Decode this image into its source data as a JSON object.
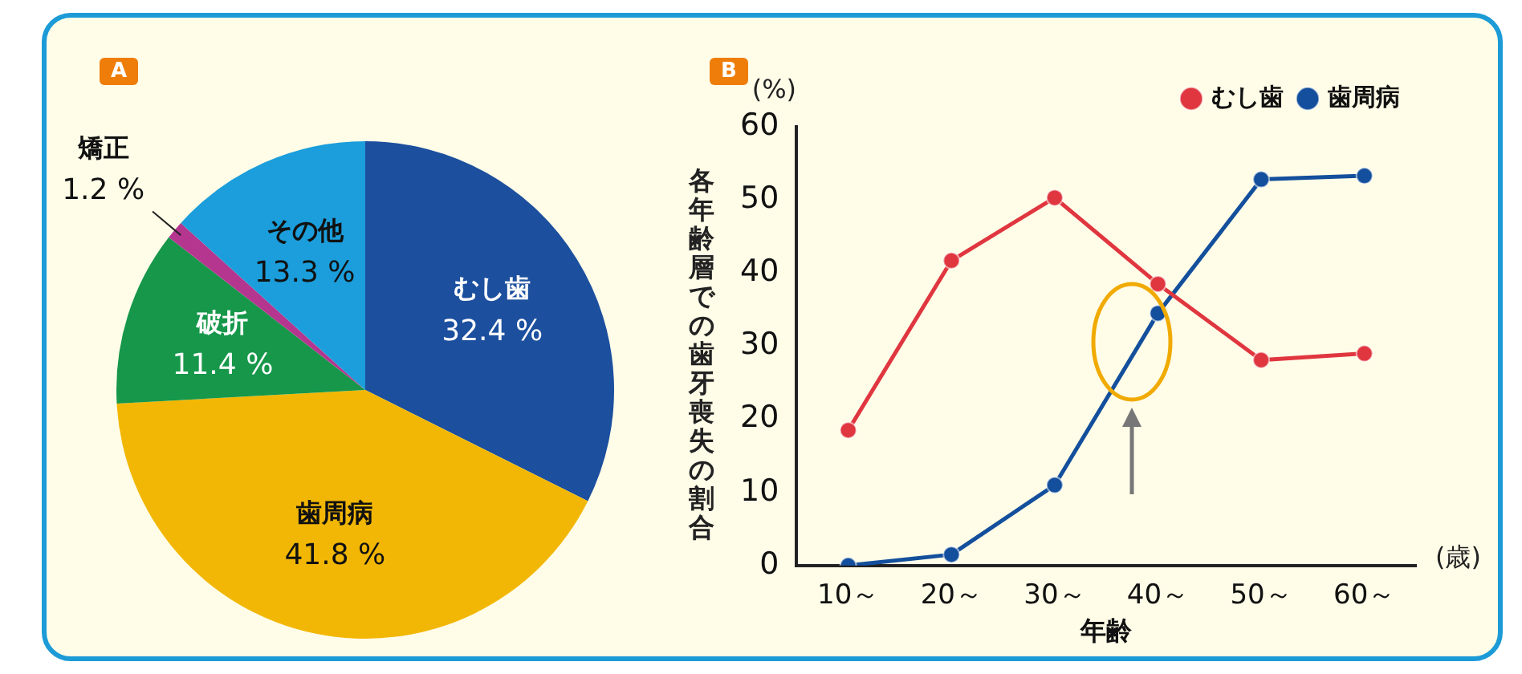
{
  "chart_data": [
    {
      "type": "pie",
      "title": "A",
      "categories": [
        "むし歯",
        "歯周病",
        "破折",
        "矯正",
        "その他"
      ],
      "values": [
        32.4,
        41.8,
        11.4,
        1.2,
        13.3
      ],
      "colors": [
        "#1c4f9e",
        "#f2b705",
        "#16974a",
        "#b4368f",
        "#1b9edb"
      ],
      "value_labels": [
        "32.4 %",
        "41.8 %",
        "11.4 %",
        "1.2 %",
        "13.3 %"
      ],
      "legend": false
    },
    {
      "type": "line",
      "title": "B",
      "categories": [
        "10～",
        "20～",
        "30～",
        "40～",
        "50～",
        "60～"
      ],
      "xlabel": "年齢",
      "ylabel": "各年齢層での歯牙喪失の割合",
      "ylim": [
        0,
        60
      ],
      "yticks": [
        0,
        10,
        20,
        30,
        40,
        50,
        60
      ],
      "grid": false,
      "legend": "top right",
      "marker": "circle",
      "line_style": "solid",
      "annotations": [
        "(%)",
        "(歳)"
      ],
      "series": [
        {
          "name": "むし歯",
          "color": "#e0363f",
          "values": [
            18.5,
            41.7,
            50.3,
            38.5,
            28.1,
            29
          ]
        },
        {
          "name": "歯周病",
          "color": "#134f9c",
          "values": [
            0,
            1.5,
            11,
            34.5,
            52.8,
            53.3
          ]
        }
      ]
    }
  ]
}
